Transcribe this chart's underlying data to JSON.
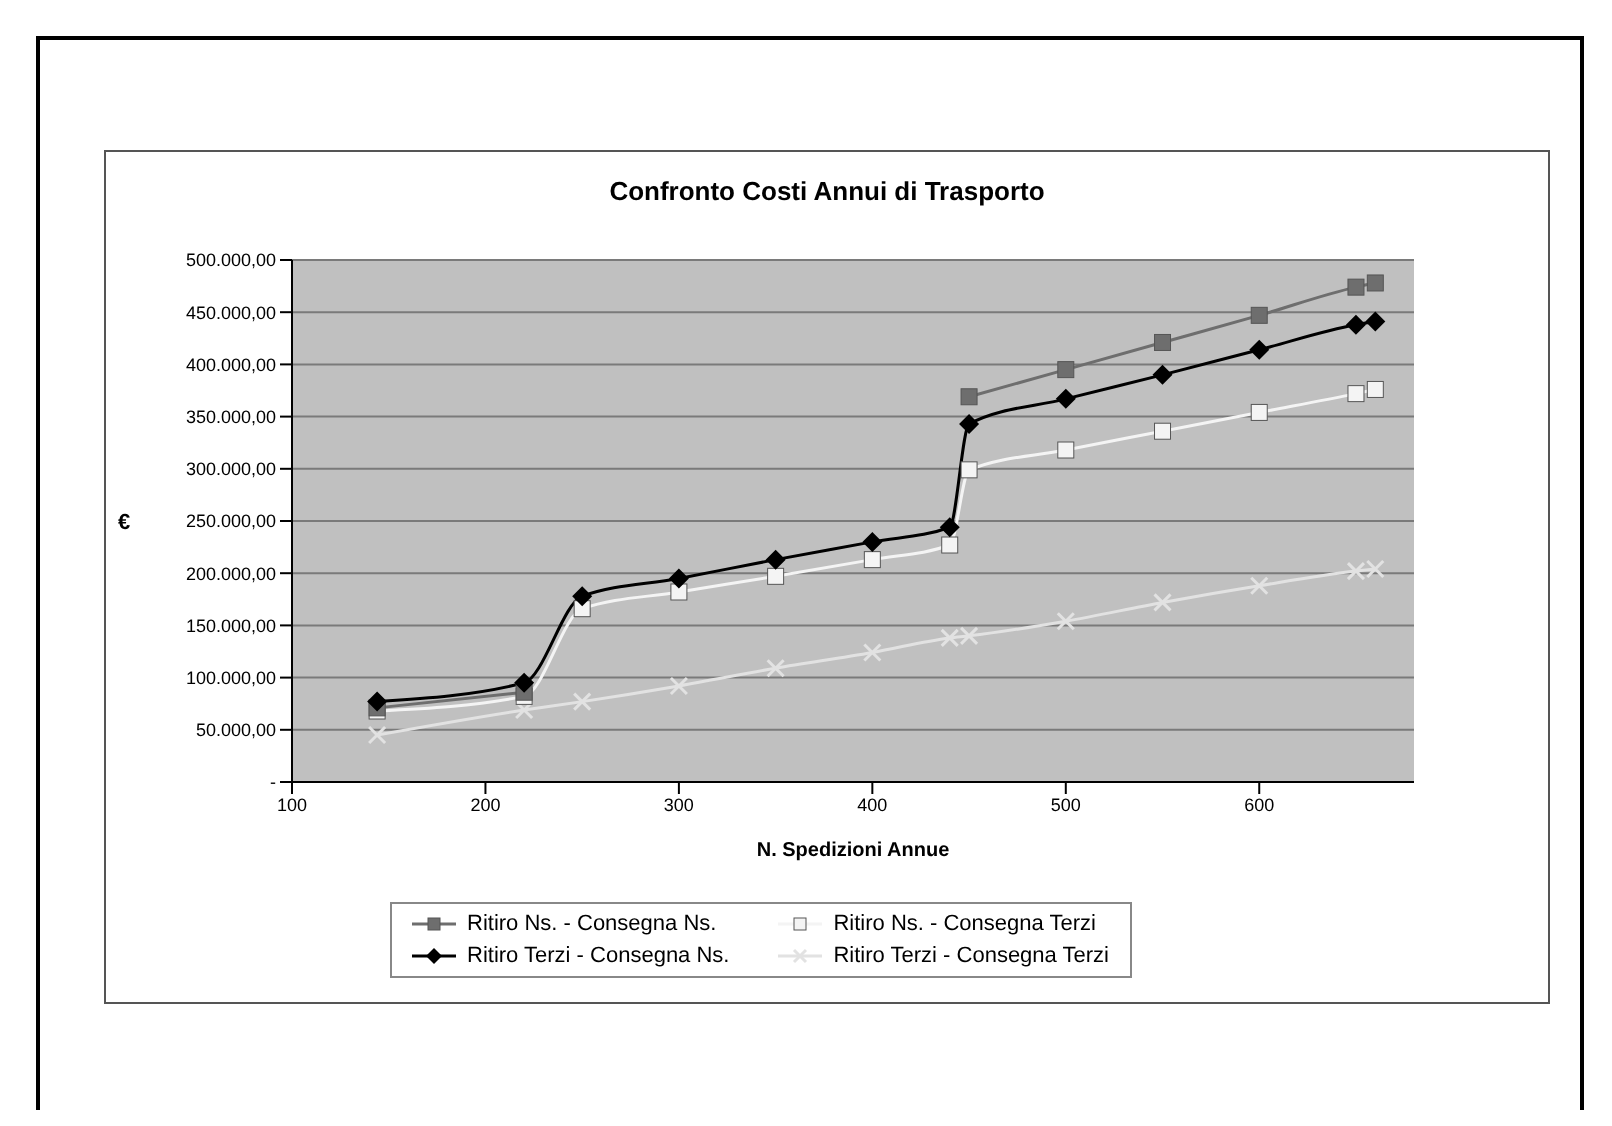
{
  "chart_data": {
    "type": "line",
    "title": "Confronto Costi Annui di Trasporto",
    "xlabel": "N. Spedizioni Annue",
    "ylabel": "€",
    "x": [
      144,
      220,
      250,
      300,
      350,
      400,
      440,
      450,
      500,
      550,
      600,
      650,
      660
    ],
    "xlim": [
      100,
      680
    ],
    "xticks": [
      100,
      200,
      300,
      400,
      500,
      600
    ],
    "ylim": [
      0,
      500000
    ],
    "yticks": [
      {
        "value": 0,
        "label": "-"
      },
      {
        "value": 50000,
        "label": "50.000,00"
      },
      {
        "value": 100000,
        "label": "100.000,00"
      },
      {
        "value": 150000,
        "label": "150.000,00"
      },
      {
        "value": 200000,
        "label": "200.000,00"
      },
      {
        "value": 250000,
        "label": "250.000,00"
      },
      {
        "value": 300000,
        "label": "300.000,00"
      },
      {
        "value": 350000,
        "label": "350.000,00"
      },
      {
        "value": 400000,
        "label": "400.000,00"
      },
      {
        "value": 450000,
        "label": "450.000,00"
      },
      {
        "value": 500000,
        "label": "500.000,00"
      }
    ],
    "grid": "y",
    "legend": "bottom",
    "series": [
      {
        "name": "Ritiro Ns. - Consegna Ns.",
        "color": "#6e6e6e",
        "marker": "square",
        "values": [
          71000,
          86000,
          null,
          null,
          null,
          null,
          null,
          369000,
          395000,
          421000,
          447000,
          474000,
          478000
        ]
      },
      {
        "name": "Ritiro Ns. - Consegna Terzi",
        "color": "#f4f4f4",
        "marker": "square",
        "values": [
          68000,
          82000,
          166000,
          182000,
          197000,
          213000,
          227000,
          299000,
          318000,
          336000,
          354000,
          372000,
          376000
        ]
      },
      {
        "name": "Ritiro Terzi - Consegna Ns.",
        "color": "#000000",
        "marker": "diamond",
        "values": [
          77000,
          95000,
          178000,
          195000,
          213000,
          230000,
          244000,
          343000,
          367000,
          390000,
          414000,
          438000,
          441000
        ]
      },
      {
        "name": "Ritiro Terzi - Consegna Terzi",
        "color": "#e2e2e2",
        "marker": "cross",
        "values": [
          45000,
          69000,
          77000,
          92000,
          109000,
          124000,
          138000,
          140000,
          154000,
          172000,
          188000,
          202000,
          204000
        ]
      }
    ]
  }
}
